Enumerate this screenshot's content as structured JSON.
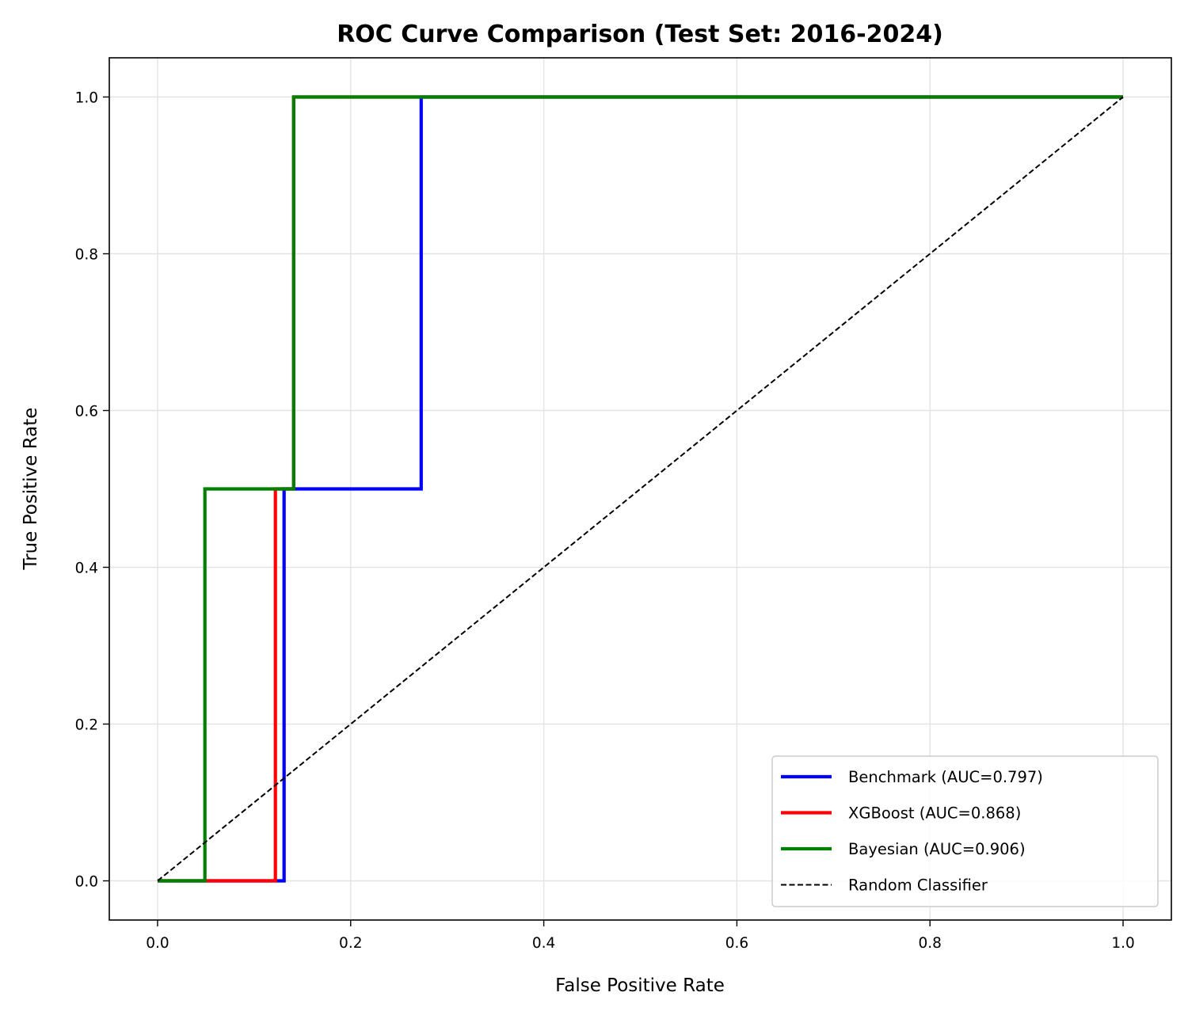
{
  "chart_data": {
    "type": "line",
    "title": "ROC Curve Comparison (Test Set: 2016-2024)",
    "xlabel": "False Positive Rate",
    "ylabel": "True Positive Rate",
    "xlim": [
      -0.05,
      1.05
    ],
    "ylim": [
      -0.05,
      1.05
    ],
    "xticks": [
      0.0,
      0.2,
      0.4,
      0.6,
      0.8,
      1.0
    ],
    "yticks": [
      0.0,
      0.2,
      0.4,
      0.6,
      0.8,
      1.0
    ],
    "xtick_labels": [
      "0.0",
      "0.2",
      "0.4",
      "0.6",
      "0.8",
      "1.0"
    ],
    "ytick_labels": [
      "0.0",
      "0.2",
      "0.4",
      "0.6",
      "0.8",
      "1.0"
    ],
    "grid": true,
    "legend_position": "lower-right",
    "series": [
      {
        "name": "Benchmark (AUC=0.797)",
        "color": "#0000ff",
        "style": "solid",
        "x": [
          0.0,
          0.131,
          0.131,
          0.273,
          0.273,
          1.0
        ],
        "y": [
          0.0,
          0.0,
          0.5,
          0.5,
          1.0,
          1.0
        ]
      },
      {
        "name": "XGBoost (AUC=0.868)",
        "color": "#ff0000",
        "style": "solid",
        "x": [
          0.0,
          0.122,
          0.122,
          0.141,
          0.141,
          1.0
        ],
        "y": [
          0.0,
          0.0,
          0.5,
          0.5,
          1.0,
          1.0
        ]
      },
      {
        "name": "Bayesian (AUC=0.906)",
        "color": "#008000",
        "style": "solid",
        "x": [
          0.0,
          0.049,
          0.049,
          0.141,
          0.141,
          1.0
        ],
        "y": [
          0.0,
          0.0,
          0.5,
          0.5,
          1.0,
          1.0
        ]
      },
      {
        "name": "Random Classifier",
        "color": "#000000",
        "style": "dashed",
        "x": [
          0.0,
          1.0
        ],
        "y": [
          0.0,
          1.0
        ]
      }
    ]
  }
}
